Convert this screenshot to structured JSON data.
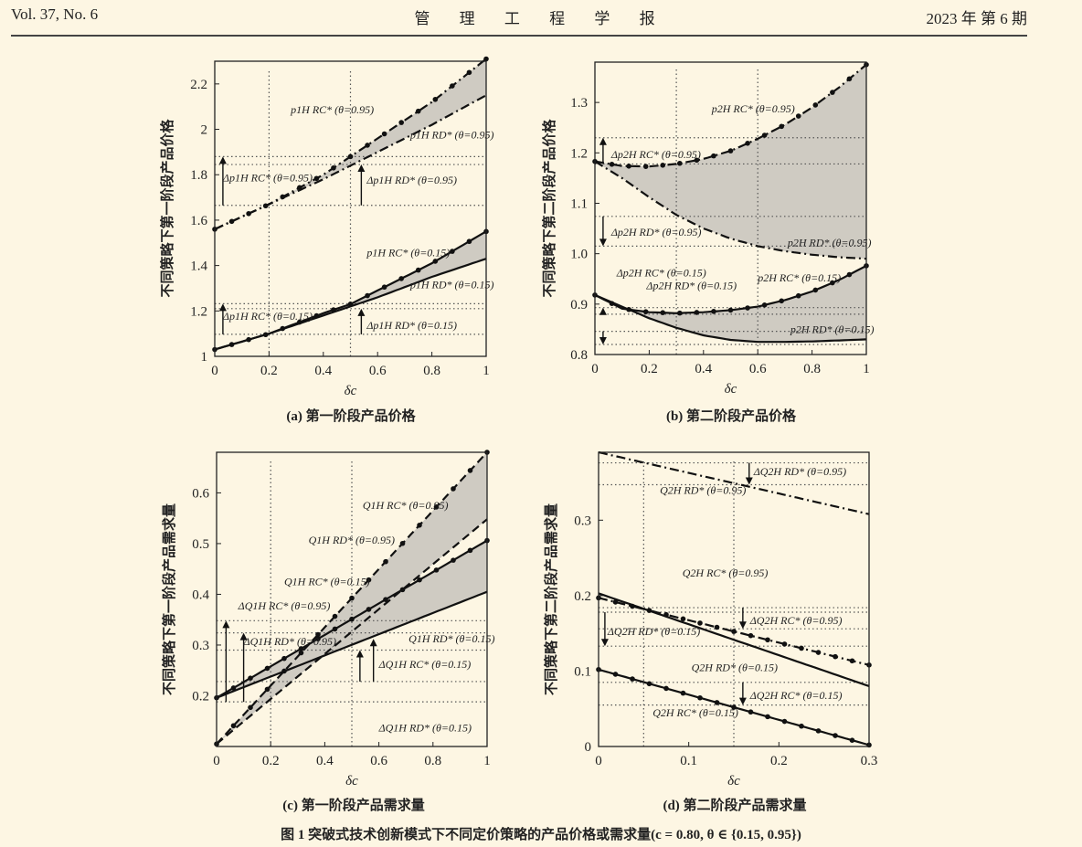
{
  "header": {
    "left": "Vol. 37, No. 6",
    "center": "管 理 工 程 学 报",
    "right": "2023 年 第 6 期"
  },
  "figure_caption": "图 1  突破式技术创新模式下不同定价策略的产品价格或需求量(c = 0.80, θ ∈ {0.15, 0.95})",
  "chart_data": [
    {
      "id": "a",
      "type": "line",
      "caption": "(a) 第一阶段产品价格",
      "xlabel": "δc",
      "ylabel": "不同策略下第一阶段产品价格",
      "xlim": [
        0,
        1
      ],
      "ylim": [
        1.0,
        2.3
      ],
      "xticks": [
        "0",
        "0.2",
        "0.4",
        "0.6",
        "0.8",
        "1"
      ],
      "xtick_values": [
        0,
        0.2,
        0.4,
        0.6,
        0.8,
        1
      ],
      "yticks": [
        "1",
        "1.2",
        "1.4",
        "1.6",
        "1.8",
        "2",
        "2.2"
      ],
      "ytick_values": [
        1.0,
        1.2,
        1.4,
        1.6,
        1.8,
        2.0,
        2.2
      ],
      "series": [
        {
          "name": "p1H RC* (θ=0.95)",
          "style": "dashdot-marker",
          "x": [
            0,
            0.2,
            0.4,
            0.5,
            0.6,
            0.8,
            1.0
          ],
          "y": [
            1.56,
            1.67,
            1.8,
            1.88,
            1.96,
            2.12,
            2.31
          ]
        },
        {
          "name": "p1H RD* (θ=0.95)",
          "style": "dashdot",
          "x": [
            0,
            0.2,
            0.4,
            0.5,
            0.6,
            0.8,
            1.0
          ],
          "y": [
            1.56,
            1.67,
            1.78,
            1.84,
            1.9,
            2.02,
            2.15
          ]
        },
        {
          "name": "p1H RC* (θ=0.15)",
          "style": "solid-marker",
          "x": [
            0,
            0.2,
            0.4,
            0.5,
            0.6,
            0.8,
            1.0
          ],
          "y": [
            1.03,
            1.1,
            1.19,
            1.23,
            1.29,
            1.41,
            1.55
          ]
        },
        {
          "name": "p1H RD* (θ=0.15)",
          "style": "solid",
          "x": [
            0,
            0.2,
            0.4,
            0.5,
            0.6,
            0.8,
            1.0
          ],
          "y": [
            1.03,
            1.1,
            1.18,
            1.22,
            1.26,
            1.35,
            1.43
          ]
        }
      ],
      "fills": [
        [
          0,
          1
        ],
        [
          2,
          3
        ]
      ],
      "vguides": [
        0.2,
        0.5
      ],
      "hguides": [
        1.88,
        1.845,
        1.665,
        1.232,
        1.21,
        1.097
      ],
      "labels": [
        {
          "text": "p1H RC* (θ=0.95)",
          "x": 0.28,
          "y": 2.07
        },
        {
          "text": "p1H RD* (θ=0.95)",
          "x": 0.72,
          "y": 1.96
        },
        {
          "text": "Δp1H RC* (θ=0.95)",
          "x": 0.03,
          "y": 1.77
        },
        {
          "text": "Δp1H RD* (θ=0.95)",
          "x": 0.56,
          "y": 1.76
        },
        {
          "text": "p1H RC* (θ=0.15)",
          "x": 0.56,
          "y": 1.44
        },
        {
          "text": "p1H RD* (θ=0.15)",
          "x": 0.72,
          "y": 1.3
        },
        {
          "text": "Δp1H RC* (θ=0.15)",
          "x": 0.03,
          "y": 1.16
        },
        {
          "text": "Δp1H RD* (θ=0.15)",
          "x": 0.56,
          "y": 1.12
        }
      ],
      "arrows": [
        {
          "x": 0.03,
          "from": 1.665,
          "to": 1.88
        },
        {
          "x": 0.54,
          "from": 1.665,
          "to": 1.845
        },
        {
          "x": 0.03,
          "from": 1.097,
          "to": 1.232
        },
        {
          "x": 0.54,
          "from": 1.097,
          "to": 1.21
        }
      ]
    },
    {
      "id": "b",
      "type": "line",
      "caption": "(b) 第二阶段产品价格",
      "xlabel": "δc",
      "ylabel": "不同策略下第二阶段产品价格",
      "xlim": [
        0,
        1
      ],
      "ylim": [
        0.8,
        1.38
      ],
      "xticks": [
        "0",
        "0.2",
        "0.4",
        "0.6",
        "0.8",
        "1"
      ],
      "xtick_values": [
        0,
        0.2,
        0.4,
        0.6,
        0.8,
        1
      ],
      "yticks": [
        "0.8",
        "0.9",
        "1.0",
        "1.1",
        "1.2",
        "1.3"
      ],
      "ytick_values": [
        0.8,
        0.9,
        1.0,
        1.1,
        1.2,
        1.3
      ],
      "series": [
        {
          "name": "p2H RC* (θ=0.95)",
          "style": "dashdot-marker",
          "x": [
            0,
            0.1,
            0.2,
            0.3,
            0.4,
            0.5,
            0.6,
            0.7,
            0.8,
            0.9,
            1.0
          ],
          "y": [
            1.183,
            1.174,
            1.173,
            1.178,
            1.188,
            1.204,
            1.228,
            1.256,
            1.29,
            1.33,
            1.375
          ]
        },
        {
          "name": "p2H RD* (θ=0.95)",
          "style": "dashdot",
          "x": [
            0,
            0.1,
            0.2,
            0.3,
            0.4,
            0.5,
            0.6,
            0.7,
            0.8,
            0.9,
            1.0
          ],
          "y": [
            1.183,
            1.15,
            1.112,
            1.077,
            1.05,
            1.03,
            1.015,
            1.005,
            0.998,
            0.993,
            0.99
          ]
        },
        {
          "name": "p2H RC* (θ=0.15)",
          "style": "solid-marker",
          "x": [
            0,
            0.1,
            0.2,
            0.3,
            0.4,
            0.5,
            0.6,
            0.7,
            0.8,
            0.9,
            1.0
          ],
          "y": [
            0.918,
            0.891,
            0.884,
            0.882,
            0.884,
            0.888,
            0.895,
            0.908,
            0.925,
            0.948,
            0.976
          ]
        },
        {
          "name": "p2H RD* (θ=0.15)",
          "style": "solid",
          "x": [
            0,
            0.1,
            0.2,
            0.3,
            0.4,
            0.5,
            0.6,
            0.7,
            0.8,
            0.9,
            1.0
          ],
          "y": [
            0.918,
            0.895,
            0.872,
            0.853,
            0.838,
            0.829,
            0.825,
            0.825,
            0.826,
            0.828,
            0.83
          ]
        }
      ],
      "fills": [
        [
          0,
          1
        ],
        [
          2,
          3
        ]
      ],
      "vguides": [
        0.3,
        0.6
      ],
      "hguides": [
        1.23,
        1.178,
        1.074,
        1.015,
        0.893,
        0.88,
        0.846,
        0.82
      ],
      "labels": [
        {
          "text": "p2H RC* (θ=0.95)",
          "x": 0.43,
          "y": 1.28
        },
        {
          "text": "Δp2H RC* (θ=0.95)",
          "x": 0.06,
          "y": 1.19
        },
        {
          "text": "Δp2H RD* (θ=0.95)",
          "x": 0.06,
          "y": 1.036
        },
        {
          "text": "p2H RD* (θ=0.95)",
          "x": 0.71,
          "y": 1.015
        },
        {
          "text": "Δp2H RC* (θ=0.15)",
          "x": 0.08,
          "y": 0.955
        },
        {
          "text": "Δp2H RD* (θ=0.15)",
          "x": 0.19,
          "y": 0.93
        },
        {
          "text": "p2H RC* (θ=0.15)",
          "x": 0.6,
          "y": 0.945
        },
        {
          "text": "p2H RD* (θ=0.15)",
          "x": 0.72,
          "y": 0.843
        }
      ],
      "arrows": [
        {
          "x": 0.03,
          "from": 1.178,
          "to": 1.23
        },
        {
          "x": 0.03,
          "from": 1.074,
          "to": 1.015
        },
        {
          "x": 0.03,
          "from": 0.88,
          "to": 0.893
        },
        {
          "x": 0.03,
          "from": 0.846,
          "to": 0.82
        }
      ]
    },
    {
      "id": "c",
      "type": "line",
      "caption": "(c) 第一阶段产品需求量",
      "xlabel": "δc",
      "ylabel": "不同策略下第一阶段产品需求量",
      "xlim": [
        0,
        1
      ],
      "ylim": [
        0.1,
        0.68
      ],
      "xticks": [
        "0",
        "0.2",
        "0.4",
        "0.6",
        "0.8",
        "1"
      ],
      "xtick_values": [
        0,
        0.2,
        0.4,
        0.6,
        0.8,
        1
      ],
      "yticks": [
        "0.2",
        "0.3",
        "0.4",
        "0.5",
        "0.6"
      ],
      "ytick_values": [
        0.2,
        0.3,
        0.4,
        0.5,
        0.6
      ],
      "series": [
        {
          "name": "Q1H RC* (θ=0.95)",
          "style": "dashed-marker",
          "x": [
            0,
            1
          ],
          "y": [
            0.105,
            0.68
          ]
        },
        {
          "name": "Q1H RD* (θ=0.95)",
          "style": "dashed",
          "x": [
            0,
            1
          ],
          "y": [
            0.105,
            0.548
          ]
        },
        {
          "name": "Q1H RC* (θ=0.15)",
          "style": "solid-marker",
          "x": [
            0,
            1
          ],
          "y": [
            0.196,
            0.506
          ]
        },
        {
          "name": "Q1H RD* (θ=0.15)",
          "style": "solid",
          "x": [
            0,
            1
          ],
          "y": [
            0.196,
            0.405
          ]
        }
      ],
      "fills": [
        [
          0,
          1
        ],
        [
          2,
          3
        ]
      ],
      "vguides": [
        0.2,
        0.5
      ],
      "hguides": [
        0.348,
        0.324,
        0.29,
        0.228,
        0.188
      ],
      "labels": [
        {
          "text": "Q1H RC* (θ=0.95)",
          "x": 0.54,
          "y": 0.568
        },
        {
          "text": "Q1H RD* (θ=0.95)",
          "x": 0.34,
          "y": 0.5
        },
        {
          "text": "Q1H RC* (θ=0.15)",
          "x": 0.25,
          "y": 0.418
        },
        {
          "text": "ΔQ1H RC* (θ=0.95)",
          "x": 0.08,
          "y": 0.37
        },
        {
          "text": "ΔQ1H RD* (θ=0.95)",
          "x": 0.1,
          "y": 0.3
        },
        {
          "text": "Q1H RD* (θ=0.15)",
          "x": 0.71,
          "y": 0.305
        },
        {
          "text": "ΔQ1H RC* (θ=0.15)",
          "x": 0.6,
          "y": 0.255
        },
        {
          "text": "ΔQ1H RD* (θ=0.15)",
          "x": 0.6,
          "y": 0.13
        }
      ],
      "arrows": [
        {
          "x": 0.035,
          "from": 0.188,
          "to": 0.348
        },
        {
          "x": 0.1,
          "from": 0.188,
          "to": 0.324
        },
        {
          "x": 0.53,
          "from": 0.228,
          "to": 0.29
        },
        {
          "x": 0.58,
          "from": 0.228,
          "to": 0.312
        }
      ]
    },
    {
      "id": "d",
      "type": "line",
      "caption": "(d) 第二阶段产品需求量",
      "xlabel": "δc",
      "ylabel": "不同策略下第二阶段产品需求量",
      "xlim": [
        0,
        0.3
      ],
      "ylim": [
        0,
        0.39
      ],
      "xticks": [
        "0",
        "0.1",
        "0.2",
        "0.3"
      ],
      "xtick_values": [
        0,
        0.1,
        0.2,
        0.3
      ],
      "yticks": [
        "0",
        "0.1",
        "0.2",
        "0.3"
      ],
      "ytick_values": [
        0,
        0.1,
        0.2,
        0.3
      ],
      "series": [
        {
          "name": "Q2H RD* (θ=0.95)",
          "style": "dashdot",
          "x": [
            0,
            0.3
          ],
          "y": [
            0.39,
            0.308
          ]
        },
        {
          "name": "Q2H RC* (θ=0.95)",
          "style": "dashdot-marker",
          "x": [
            0,
            0.3
          ],
          "y": [
            0.197,
            0.108
          ]
        },
        {
          "name": "Q2H RD* (θ=0.15)",
          "style": "solid",
          "x": [
            0,
            0.3
          ],
          "y": [
            0.203,
            0.08
          ]
        },
        {
          "name": "Q2H RC* (θ=0.15)",
          "style": "solid-marker",
          "x": [
            0,
            0.3
          ],
          "y": [
            0.102,
            0.002
          ]
        }
      ],
      "fills": [],
      "vguides": [
        0.05,
        0.15
      ],
      "hguides": [
        0.376,
        0.347,
        0.184,
        0.156,
        0.178,
        0.133,
        0.085,
        0.055
      ],
      "labels": [
        {
          "text": "ΔQ2H RD* (θ=0.95)",
          "x": 0.172,
          "y": 0.36
        },
        {
          "text": "Q2H RD* (θ=0.95)",
          "x": 0.068,
          "y": 0.335
        },
        {
          "text": "Q2H RC* (θ=0.95)",
          "x": 0.093,
          "y": 0.225
        },
        {
          "text": "ΔQ2H RC* (θ=0.95)",
          "x": 0.168,
          "y": 0.162
        },
        {
          "text": "ΔQ2H RD* (θ=0.15)",
          "x": 0.01,
          "y": 0.148
        },
        {
          "text": "Q2H RD* (θ=0.15)",
          "x": 0.103,
          "y": 0.1
        },
        {
          "text": "ΔQ2H RC* (θ=0.15)",
          "x": 0.168,
          "y": 0.063
        },
        {
          "text": "Q2H RC* (θ=0.15)",
          "x": 0.06,
          "y": 0.04
        }
      ],
      "arrows": [
        {
          "x": 0.167,
          "from": 0.376,
          "to": 0.347
        },
        {
          "x": 0.16,
          "from": 0.184,
          "to": 0.156
        },
        {
          "x": 0.007,
          "from": 0.178,
          "to": 0.133
        },
        {
          "x": 0.16,
          "from": 0.085,
          "to": 0.055
        }
      ]
    }
  ]
}
